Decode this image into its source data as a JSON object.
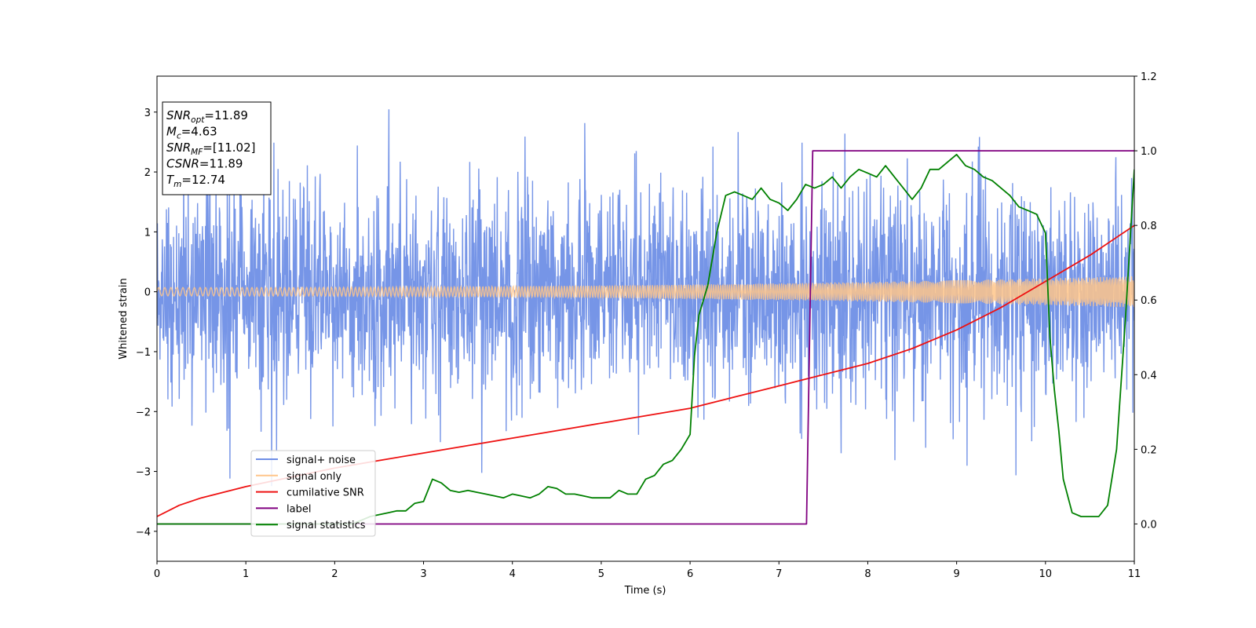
{
  "chart_data": {
    "type": "line",
    "xlabel": "Time (s)",
    "ylabel": "Whitened strain",
    "xlim": [
      0,
      11
    ],
    "ylim": [
      -4.5,
      3.6
    ],
    "y2lim": [
      -0.1,
      1.2
    ],
    "grid": false,
    "xticks": [
      0,
      1,
      2,
      3,
      4,
      5,
      6,
      7,
      8,
      9,
      10,
      11
    ],
    "yticks": [
      -4,
      -3,
      -2,
      -1,
      0,
      1,
      2,
      3
    ],
    "y2ticks": [
      0.0,
      0.2,
      0.4,
      0.6,
      0.8,
      1.0,
      1.2
    ],
    "info_box": [
      {
        "base": "SNR",
        "sub": "opt",
        "value": "=11.89"
      },
      {
        "base": "M",
        "sub": "c",
        "value": "=4.63"
      },
      {
        "base": "SNR",
        "sub": "MF",
        "value": "=[11.02]"
      },
      {
        "base": "CSNR",
        "sub": "",
        "value": "=11.89"
      },
      {
        "base": "T",
        "sub": "m",
        "value": "=12.74"
      }
    ],
    "legend": {
      "placement": "lower-left",
      "entries": [
        {
          "label": "signal+ noise",
          "color": "#6f8fe6"
        },
        {
          "label": "signal only",
          "color": "#ffc58a"
        },
        {
          "label": "cumilative SNR",
          "color": "#ee1111"
        },
        {
          "label": "label",
          "color": "#800080"
        },
        {
          "label": "signal statistics",
          "color": "#008000"
        }
      ]
    },
    "series": [
      {
        "name": "signal+ noise",
        "axis": "left",
        "color": "#6f8fe6",
        "kind": "noise",
        "std": 0.9,
        "min": -4.2,
        "max": 3.3
      },
      {
        "name": "signal only",
        "axis": "left",
        "color": "#ffc58a",
        "kind": "chirp",
        "amplitude_start": 0.07,
        "amplitude_end": 0.26
      },
      {
        "name": "cumilative SNR",
        "axis": "right",
        "color": "#ee1111",
        "x": [
          0,
          0.25,
          0.5,
          1,
          1.5,
          2,
          2.5,
          3,
          3.5,
          4,
          4.5,
          5,
          5.5,
          6,
          6.5,
          7,
          7.5,
          8,
          8.5,
          9,
          9.5,
          10,
          10.5,
          11
        ],
        "values": [
          0.02,
          0.05,
          0.07,
          0.1,
          0.125,
          0.15,
          0.17,
          0.19,
          0.21,
          0.23,
          0.25,
          0.27,
          0.29,
          0.31,
          0.34,
          0.37,
          0.4,
          0.43,
          0.47,
          0.52,
          0.58,
          0.65,
          0.72,
          0.8
        ]
      },
      {
        "name": "label",
        "axis": "right",
        "color": "#800080",
        "x": [
          0,
          7.31,
          7.38,
          11
        ],
        "values": [
          0,
          0,
          1,
          1
        ]
      },
      {
        "name": "signal statistics",
        "axis": "right",
        "color": "#008000",
        "x": [
          0,
          2.2,
          2.4,
          2.6,
          2.7,
          2.8,
          2.9,
          3.0,
          3.1,
          3.2,
          3.3,
          3.4,
          3.5,
          3.6,
          3.7,
          3.8,
          3.9,
          4.0,
          4.1,
          4.2,
          4.3,
          4.4,
          4.5,
          4.6,
          4.7,
          4.8,
          4.9,
          5.0,
          5.1,
          5.2,
          5.3,
          5.4,
          5.5,
          5.6,
          5.7,
          5.8,
          5.9,
          6.0,
          6.05,
          6.1,
          6.15,
          6.2,
          6.3,
          6.4,
          6.5,
          6.6,
          6.7,
          6.8,
          6.9,
          7.0,
          7.1,
          7.2,
          7.3,
          7.4,
          7.5,
          7.6,
          7.7,
          7.8,
          7.9,
          8.0,
          8.1,
          8.2,
          8.3,
          8.4,
          8.5,
          8.6,
          8.7,
          8.8,
          8.9,
          9.0,
          9.1,
          9.2,
          9.3,
          9.4,
          9.5,
          9.6,
          9.7,
          9.8,
          9.9,
          10.0,
          10.05,
          10.1,
          10.15,
          10.2,
          10.3,
          10.4,
          10.5,
          10.6,
          10.7,
          10.8,
          10.9,
          11.0
        ],
        "values": [
          0,
          0,
          0.02,
          0.03,
          0.035,
          0.035,
          0.055,
          0.06,
          0.12,
          0.11,
          0.09,
          0.085,
          0.09,
          0.085,
          0.08,
          0.075,
          0.07,
          0.08,
          0.075,
          0.07,
          0.08,
          0.1,
          0.095,
          0.08,
          0.08,
          0.075,
          0.07,
          0.07,
          0.07,
          0.09,
          0.08,
          0.08,
          0.12,
          0.13,
          0.16,
          0.17,
          0.2,
          0.24,
          0.45,
          0.56,
          0.6,
          0.64,
          0.78,
          0.88,
          0.89,
          0.88,
          0.87,
          0.9,
          0.87,
          0.86,
          0.84,
          0.87,
          0.91,
          0.9,
          0.91,
          0.93,
          0.9,
          0.93,
          0.95,
          0.94,
          0.93,
          0.96,
          0.93,
          0.9,
          0.87,
          0.9,
          0.95,
          0.95,
          0.97,
          0.99,
          0.96,
          0.95,
          0.93,
          0.92,
          0.9,
          0.88,
          0.85,
          0.84,
          0.83,
          0.78,
          0.5,
          0.36,
          0.25,
          0.12,
          0.03,
          0.02,
          0.02,
          0.02,
          0.05,
          0.2,
          0.55,
          0.95
        ]
      }
    ]
  }
}
